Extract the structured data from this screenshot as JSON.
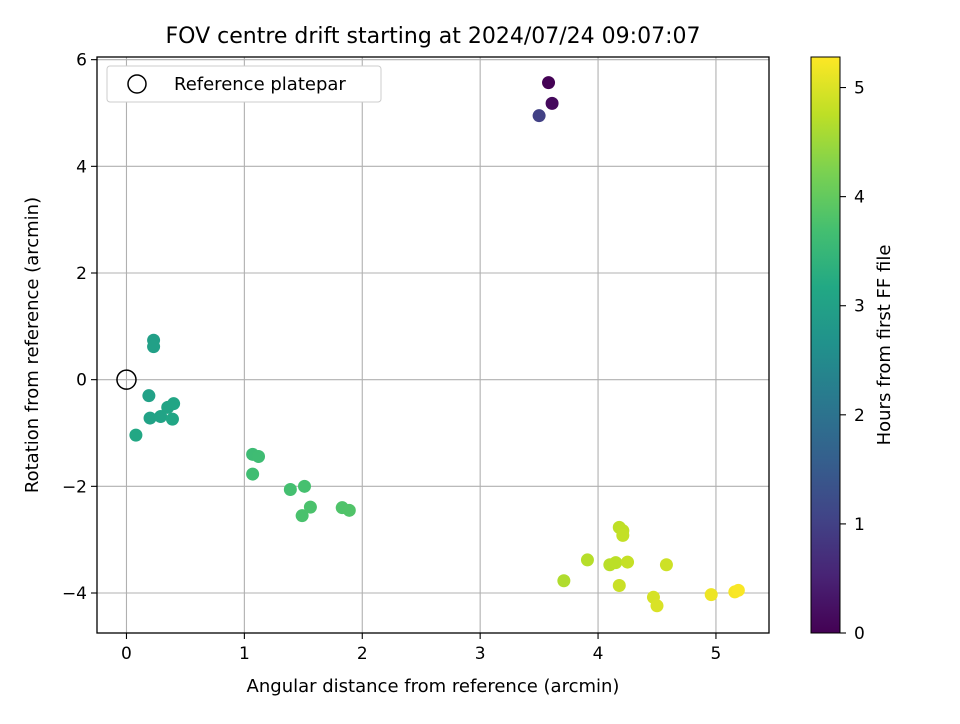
{
  "chart_data": {
    "type": "scatter",
    "title": "FOV centre drift starting at 2024/07/24 09:07:07",
    "xlabel": "Angular distance from reference (arcmin)",
    "ylabel": "Rotation from reference (arcmin)",
    "xlim": [
      -0.25,
      5.45
    ],
    "ylim": [
      -4.75,
      6.05
    ],
    "xticks": [
      0,
      1,
      2,
      3,
      4,
      5
    ],
    "xtick_labels": [
      "0",
      "1",
      "2",
      "3",
      "4",
      "5"
    ],
    "yticks": [
      -4,
      -2,
      0,
      2,
      4,
      6
    ],
    "ytick_labels": [
      "−4",
      "−2",
      "0",
      "2",
      "4",
      "6"
    ],
    "grid": true,
    "legend": {
      "position": "top-left",
      "entries": [
        "Reference platepar"
      ]
    },
    "reference_point": {
      "x": 0,
      "y": 0,
      "label": "Reference platepar"
    },
    "colorbar": {
      "label": "Hours from first FF file",
      "range": [
        0,
        5.28
      ],
      "ticks": [
        0,
        1,
        2,
        3,
        4,
        5
      ],
      "tick_labels": [
        "0",
        "1",
        "2",
        "3",
        "4",
        "5"
      ],
      "colormap": "viridis"
    },
    "series": [
      {
        "name": "FOV centre drift",
        "points": [
          {
            "x": 3.58,
            "y": 5.57,
            "hours": 0.02
          },
          {
            "x": 3.61,
            "y": 5.18,
            "hours": 0.12
          },
          {
            "x": 3.5,
            "y": 4.95,
            "hours": 1.0
          },
          {
            "x": 0.23,
            "y": 0.74,
            "hours": 2.95
          },
          {
            "x": 0.23,
            "y": 0.62,
            "hours": 2.98
          },
          {
            "x": 0.19,
            "y": -0.3,
            "hours": 3.0
          },
          {
            "x": 0.2,
            "y": -0.72,
            "hours": 3.02
          },
          {
            "x": 0.29,
            "y": -0.69,
            "hours": 3.05
          },
          {
            "x": 0.35,
            "y": -0.52,
            "hours": 3.08
          },
          {
            "x": 0.4,
            "y": -0.45,
            "hours": 3.1
          },
          {
            "x": 0.39,
            "y": -0.74,
            "hours": 3.12
          },
          {
            "x": 0.08,
            "y": -1.04,
            "hours": 3.14
          },
          {
            "x": 1.07,
            "y": -1.4,
            "hours": 3.6
          },
          {
            "x": 1.12,
            "y": -1.44,
            "hours": 3.62
          },
          {
            "x": 1.07,
            "y": -1.77,
            "hours": 3.64
          },
          {
            "x": 1.39,
            "y": -2.06,
            "hours": 3.7
          },
          {
            "x": 1.51,
            "y": -2.0,
            "hours": 3.72
          },
          {
            "x": 1.49,
            "y": -2.55,
            "hours": 3.74
          },
          {
            "x": 1.56,
            "y": -2.39,
            "hours": 3.76
          },
          {
            "x": 1.83,
            "y": -2.4,
            "hours": 3.8
          },
          {
            "x": 1.89,
            "y": -2.45,
            "hours": 3.82
          },
          {
            "x": 3.71,
            "y": -3.77,
            "hours": 4.65
          },
          {
            "x": 3.91,
            "y": -3.38,
            "hours": 4.7
          },
          {
            "x": 4.1,
            "y": -3.47,
            "hours": 4.72
          },
          {
            "x": 4.15,
            "y": -3.43,
            "hours": 4.74
          },
          {
            "x": 4.18,
            "y": -2.77,
            "hours": 4.76
          },
          {
            "x": 4.21,
            "y": -2.83,
            "hours": 4.78
          },
          {
            "x": 4.21,
            "y": -2.92,
            "hours": 4.8
          },
          {
            "x": 4.25,
            "y": -3.42,
            "hours": 4.82
          },
          {
            "x": 4.18,
            "y": -3.86,
            "hours": 4.85
          },
          {
            "x": 4.58,
            "y": -3.47,
            "hours": 4.88
          },
          {
            "x": 4.47,
            "y": -4.08,
            "hours": 4.95
          },
          {
            "x": 4.5,
            "y": -4.24,
            "hours": 4.98
          },
          {
            "x": 4.96,
            "y": -4.03,
            "hours": 5.15
          },
          {
            "x": 5.16,
            "y": -3.98,
            "hours": 5.22
          },
          {
            "x": 5.19,
            "y": -3.95,
            "hours": 5.25
          }
        ]
      }
    ]
  }
}
